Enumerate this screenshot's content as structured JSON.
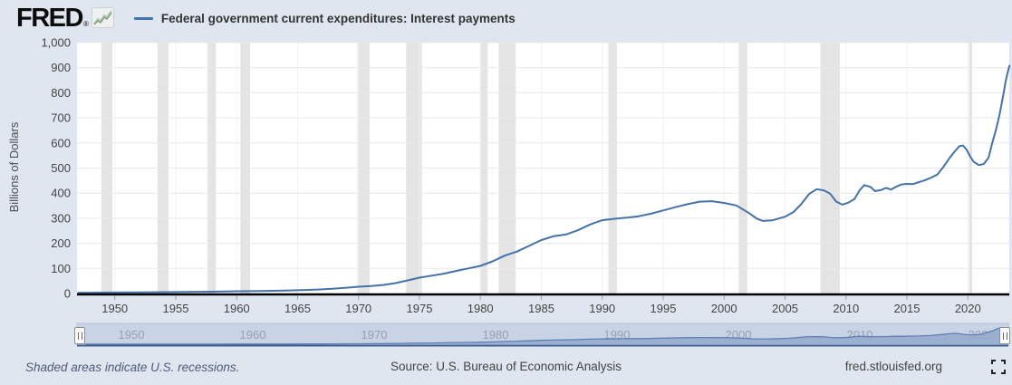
{
  "header": {
    "logo_text": "FRED",
    "logo_registered": "®"
  },
  "chart_data": {
    "type": "line",
    "title": "Federal government current expenditures: Interest payments",
    "ylabel": "Billions of Dollars",
    "ylim": [
      0,
      1000
    ],
    "x_domain": [
      1946.9,
      2023.4
    ],
    "grid": true,
    "legend_position": "top-left",
    "y_ticks": [
      {
        "label": "0",
        "value": 0
      },
      {
        "label": "100",
        "value": 100
      },
      {
        "label": "200",
        "value": 200
      },
      {
        "label": "300",
        "value": 300
      },
      {
        "label": "400",
        "value": 400
      },
      {
        "label": "500",
        "value": 500
      },
      {
        "label": "600",
        "value": 600
      },
      {
        "label": "700",
        "value": 700
      },
      {
        "label": "800",
        "value": 800
      },
      {
        "label": "900",
        "value": 900
      },
      {
        "label": "1,000",
        "value": 1000
      }
    ],
    "x_ticks": [
      1950,
      1955,
      1960,
      1965,
      1970,
      1975,
      1980,
      1985,
      1990,
      1995,
      2000,
      2005,
      2010,
      2015,
      2020
    ],
    "recessions": [
      [
        1948.9,
        1949.8
      ],
      [
        1953.5,
        1954.4
      ],
      [
        1957.6,
        1958.3
      ],
      [
        1960.3,
        1961.1
      ],
      [
        1969.9,
        1970.9
      ],
      [
        1973.9,
        1975.2
      ],
      [
        1980.0,
        1980.6
      ],
      [
        1981.5,
        1982.9
      ],
      [
        1990.5,
        1991.2
      ],
      [
        2001.2,
        2001.9
      ],
      [
        2007.9,
        2009.5
      ],
      [
        2020.1,
        2020.35
      ]
    ],
    "series": [
      {
        "name": "Federal government current expenditures: Interest payments",
        "units": "Billions of Dollars",
        "points": [
          [
            1947,
            3
          ],
          [
            1948,
            3.4
          ],
          [
            1949,
            3.7
          ],
          [
            1950,
            4.1
          ],
          [
            1951,
            4.4
          ],
          [
            1952,
            4.7
          ],
          [
            1953,
            5
          ],
          [
            1954,
            5.3
          ],
          [
            1955,
            5.7
          ],
          [
            1956,
            6.1
          ],
          [
            1957,
            6.8
          ],
          [
            1958,
            7.3
          ],
          [
            1959,
            8.2
          ],
          [
            1960,
            9
          ],
          [
            1961,
            9.4
          ],
          [
            1962,
            10.2
          ],
          [
            1963,
            11
          ],
          [
            1964,
            12
          ],
          [
            1965,
            13
          ],
          [
            1966,
            14.6
          ],
          [
            1967,
            16.6
          ],
          [
            1968,
            19.4
          ],
          [
            1969,
            23
          ],
          [
            1970,
            27
          ],
          [
            1971,
            30
          ],
          [
            1972,
            34
          ],
          [
            1973,
            41
          ],
          [
            1974,
            52
          ],
          [
            1975,
            63
          ],
          [
            1976,
            71
          ],
          [
            1977,
            79
          ],
          [
            1978,
            90
          ],
          [
            1979,
            100
          ],
          [
            1980,
            110
          ],
          [
            1981,
            128
          ],
          [
            1982,
            151
          ],
          [
            1983,
            167
          ],
          [
            1984,
            190
          ],
          [
            1985,
            213
          ],
          [
            1986,
            228
          ],
          [
            1987,
            235
          ],
          [
            1988,
            252
          ],
          [
            1989,
            275
          ],
          [
            1990,
            292
          ],
          [
            1991,
            298
          ],
          [
            1992,
            302
          ],
          [
            1993,
            308
          ],
          [
            1994,
            318
          ],
          [
            1995,
            331
          ],
          [
            1996,
            344
          ],
          [
            1997,
            356
          ],
          [
            1998,
            366
          ],
          [
            1999,
            368
          ],
          [
            2000,
            361
          ],
          [
            2001,
            351
          ],
          [
            2002,
            322
          ],
          [
            2002.7,
            298
          ],
          [
            2003.2,
            289
          ],
          [
            2004,
            292
          ],
          [
            2005,
            306
          ],
          [
            2005.7,
            325
          ],
          [
            2006.3,
            355
          ],
          [
            2007,
            398
          ],
          [
            2007.6,
            416
          ],
          [
            2008.2,
            411
          ],
          [
            2008.7,
            398
          ],
          [
            2009.2,
            366
          ],
          [
            2009.7,
            354
          ],
          [
            2010.2,
            362
          ],
          [
            2010.7,
            377
          ],
          [
            2011.1,
            410
          ],
          [
            2011.5,
            432
          ],
          [
            2012,
            425
          ],
          [
            2012.4,
            408
          ],
          [
            2012.9,
            413
          ],
          [
            2013.3,
            421
          ],
          [
            2013.7,
            414
          ],
          [
            2014.1,
            425
          ],
          [
            2014.5,
            434
          ],
          [
            2015,
            437
          ],
          [
            2015.5,
            436
          ],
          [
            2016,
            444
          ],
          [
            2016.5,
            452
          ],
          [
            2017,
            462
          ],
          [
            2017.5,
            474
          ],
          [
            2018,
            505
          ],
          [
            2018.5,
            540
          ],
          [
            2018.9,
            565
          ],
          [
            2019.3,
            587
          ],
          [
            2019.6,
            590
          ],
          [
            2019.9,
            573
          ],
          [
            2020.2,
            545
          ],
          [
            2020.5,
            524
          ],
          [
            2020.9,
            512
          ],
          [
            2021.3,
            516
          ],
          [
            2021.7,
            541
          ],
          [
            2022,
            600
          ],
          [
            2022.3,
            651
          ],
          [
            2022.6,
            712
          ],
          [
            2022.9,
            790
          ],
          [
            2023.1,
            845
          ],
          [
            2023.3,
            888
          ],
          [
            2023.42,
            908
          ]
        ]
      }
    ]
  },
  "slider": {
    "decade_labels": [
      "1950",
      "1960",
      "1970",
      "1980",
      "1990",
      "2000",
      "2010",
      "2020"
    ]
  },
  "footer": {
    "note": "Shaded areas indicate U.S. recessions.",
    "source": "Source: U.S. Bureau of Economic Analysis",
    "site": "fred.stlouisfed.org"
  },
  "colors": {
    "page_bg": "#dfe6ef",
    "plot_bg": "#ffffff",
    "line": "#4572a7",
    "recession_band": "#e4e4e4",
    "grid": "#e9e9e9",
    "grid_vertical": "#f2f2f2",
    "zero_axis": "#000000",
    "tick_mark": "#9aa0a6",
    "slider_band": "#c8d3e6",
    "slider_border": "#b3c0d8",
    "slider_area": "#94abce",
    "slider_area_line": "#5e80b2",
    "slider_baseline": "#3e5e94"
  }
}
